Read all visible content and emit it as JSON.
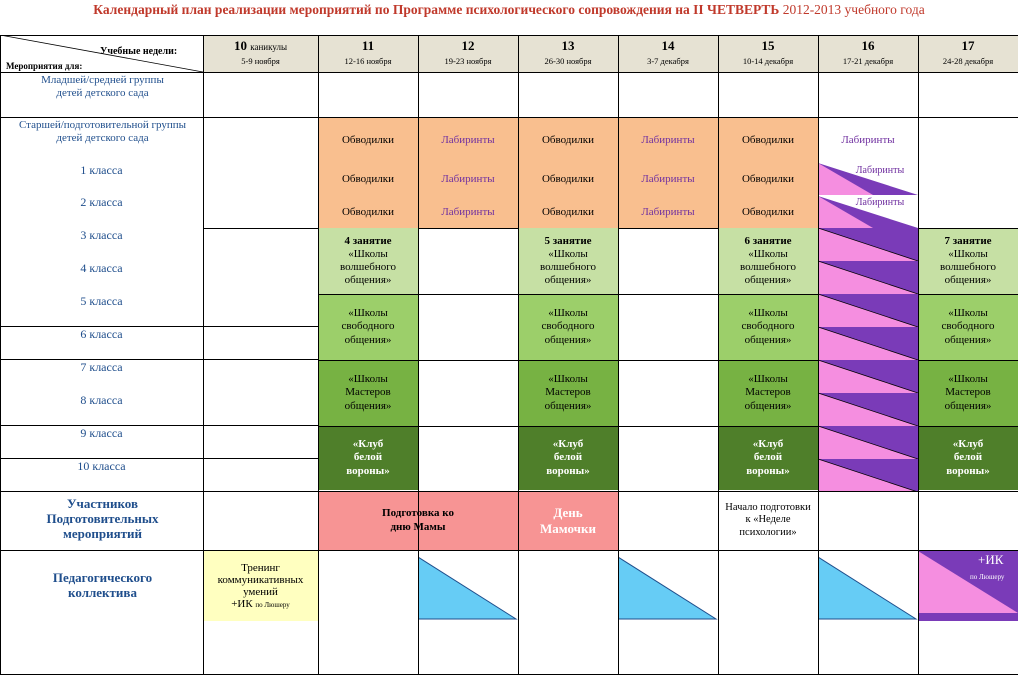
{
  "title": {
    "main": "Календарный план реализации мероприятий по Программе психологического сопровождения на II ЧЕТВЕРТЬ",
    "years": " 2012-2013 учебного года"
  },
  "corner": {
    "top": "Учебные недели:",
    "bottom": "Мероприятия для:"
  },
  "weeks": [
    {
      "num": "10",
      "note": "каникулы",
      "dates": "5-9 ноября"
    },
    {
      "num": "11",
      "note": "",
      "dates": "12-16 ноября"
    },
    {
      "num": "12",
      "note": "",
      "dates": "19-23 ноября"
    },
    {
      "num": "13",
      "note": "",
      "dates": "26-30 ноября"
    },
    {
      "num": "14",
      "note": "",
      "dates": "3-7 декабря"
    },
    {
      "num": "15",
      "note": "",
      "dates": "10-14 декабря"
    },
    {
      "num": "16",
      "note": "",
      "dates": "17-21 декабря"
    },
    {
      "num": "17",
      "note": "",
      "dates": "24-28 декабря"
    }
  ],
  "row_labels": {
    "r0": "Младшей/средней группы детей детского сада",
    "r1": "Старшей/подготовительной группы детей детского сада",
    "r2": "1 класса",
    "r3": "2 класса",
    "r4": "3 класса",
    "r5": "4 класса",
    "r6": "5 класса",
    "r7": "6 класса",
    "r8": "7 класса",
    "r9": "8 класса",
    "r10": "9 класса",
    "r11": "10 класса",
    "r12": "Участников Подготовительных мероприятий",
    "r13": "Педагогического коллектива"
  },
  "activities": {
    "obvodilki": "Обводилки",
    "labirinty": "Лабиринты",
    "zan4": "4 занятие",
    "zan5": "5 занятие",
    "zan6": "6 занятие",
    "zan7": "7 занятие",
    "volsh": "«Школы волшебного общения»",
    "svob": "«Школы свободного общения»",
    "master": "«Школы Мастеров общения»",
    "klub": "«Клуб белой вороны»",
    "podg_mamy": "Подготовка ко дню Мамы",
    "den_mamochki": "День Мамочки",
    "nachalo": "Начало подготовки к «Неделе психологии»",
    "trening": "Тренинг коммуникативных умений",
    "ik": "+ИК",
    "lyusher": "по Люшеру"
  },
  "colors": {
    "orange": "#f9bf8f",
    "green_light": "#c6e0a4",
    "green_mid": "#9ccf6a",
    "green": "#77b243",
    "green_dark": "#4f7f2a",
    "salmon": "#f79494",
    "yellow": "#ffffc0",
    "purple": "#7a3bb8",
    "pink": "#f58ee0",
    "cyan": "#66ccf5",
    "header": "#e6e2d3"
  }
}
